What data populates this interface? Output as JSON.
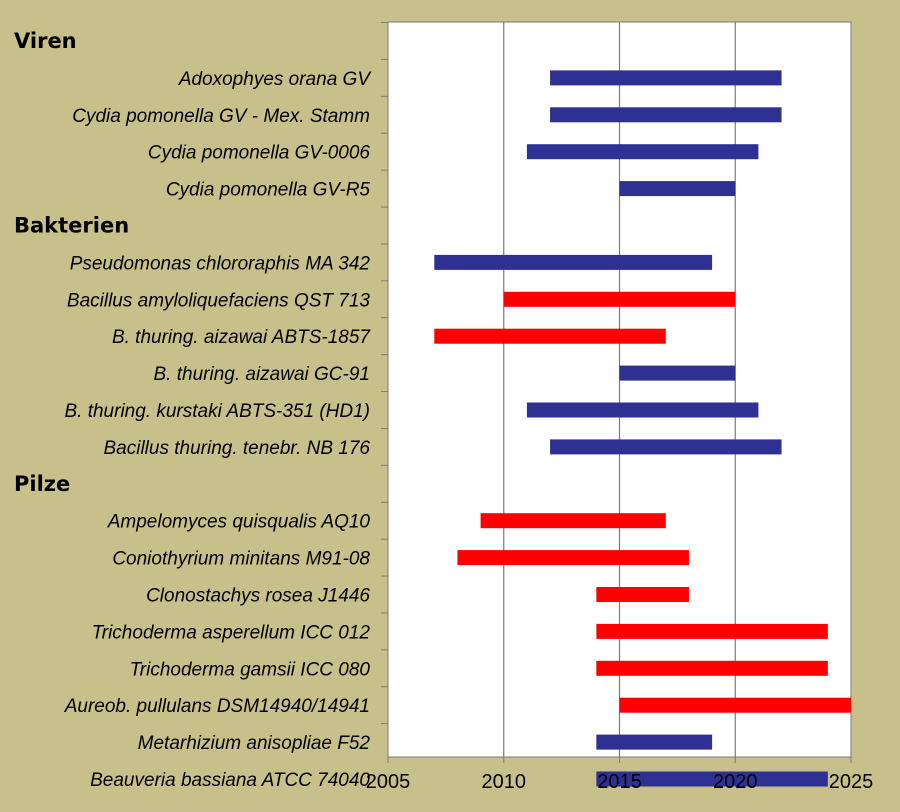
{
  "chart_data": {
    "type": "bar",
    "orientation": "horizontal-range",
    "xlim": [
      2005,
      2025
    ],
    "x_ticks": [
      "2005",
      "2010",
      "2015",
      "2020",
      "2025"
    ],
    "grid": "vertical",
    "legend": null,
    "colors": {
      "blue": "#2e3192",
      "red": "#ff0000",
      "background": "#c8c08a",
      "plot": "#ffffff"
    },
    "groups": [
      "Viren",
      "Bakterien",
      "Pilze"
    ],
    "rows": [
      {
        "kind": "group",
        "label": "Viren"
      },
      {
        "kind": "bar",
        "label": "Adoxophyes orana GV",
        "start": 2012,
        "end": 2022,
        "color": "blue"
      },
      {
        "kind": "bar",
        "label": "Cydia pomonella GV - Mex. Stamm",
        "start": 2012,
        "end": 2022,
        "color": "blue"
      },
      {
        "kind": "bar",
        "label": "Cydia pomonella GV-0006",
        "start": 2011,
        "end": 2021,
        "color": "blue"
      },
      {
        "kind": "bar",
        "label": "Cydia pomonella GV-R5",
        "start": 2015,
        "end": 2020,
        "color": "blue"
      },
      {
        "kind": "group",
        "label": "Bakterien"
      },
      {
        "kind": "bar",
        "label": "Pseudomonas chlororaphis MA 342",
        "start": 2007,
        "end": 2019,
        "color": "blue"
      },
      {
        "kind": "bar",
        "label": "Bacillus amyloliquefaciens QST 713",
        "start": 2010,
        "end": 2020,
        "color": "red"
      },
      {
        "kind": "bar",
        "label": "B. thuring. aizawai ABTS-1857",
        "start": 2007,
        "end": 2017,
        "color": "red"
      },
      {
        "kind": "bar",
        "label": "B. thuring. aizawai GC-91",
        "start": 2015,
        "end": 2020,
        "color": "blue"
      },
      {
        "kind": "bar",
        "label": "B. thuring. kurstaki ABTS-351 (HD1)",
        "start": 2011,
        "end": 2021,
        "color": "blue"
      },
      {
        "kind": "bar",
        "label": "Bacillus thuring. tenebr. NB 176",
        "start": 2012,
        "end": 2022,
        "color": "blue"
      },
      {
        "kind": "group",
        "label": "Pilze"
      },
      {
        "kind": "bar",
        "label": "Ampelomyces quisqualis AQ10",
        "start": 2009,
        "end": 2017,
        "color": "red"
      },
      {
        "kind": "bar",
        "label": "Coniothyrium minitans M91-08",
        "start": 2008,
        "end": 2018,
        "color": "red"
      },
      {
        "kind": "bar",
        "label": "Clonostachys rosea J1446",
        "start": 2014,
        "end": 2018,
        "color": "red"
      },
      {
        "kind": "bar",
        "label": "Trichoderma asperellum ICC 012",
        "start": 2014,
        "end": 2024,
        "color": "red"
      },
      {
        "kind": "bar",
        "label": "Trichoderma gamsii ICC 080",
        "start": 2014,
        "end": 2024,
        "color": "red"
      },
      {
        "kind": "bar",
        "label": "Aureob. pullulans DSM14940/14941",
        "start": 2015,
        "end": 2025,
        "color": "red"
      },
      {
        "kind": "bar",
        "label": "Metarhizium anisopliae F52",
        "start": 2014,
        "end": 2019,
        "color": "blue"
      },
      {
        "kind": "bar",
        "label": "Beauveria bassiana ATCC 74040",
        "start": 2014,
        "end": 2024,
        "color": "blue"
      }
    ]
  }
}
